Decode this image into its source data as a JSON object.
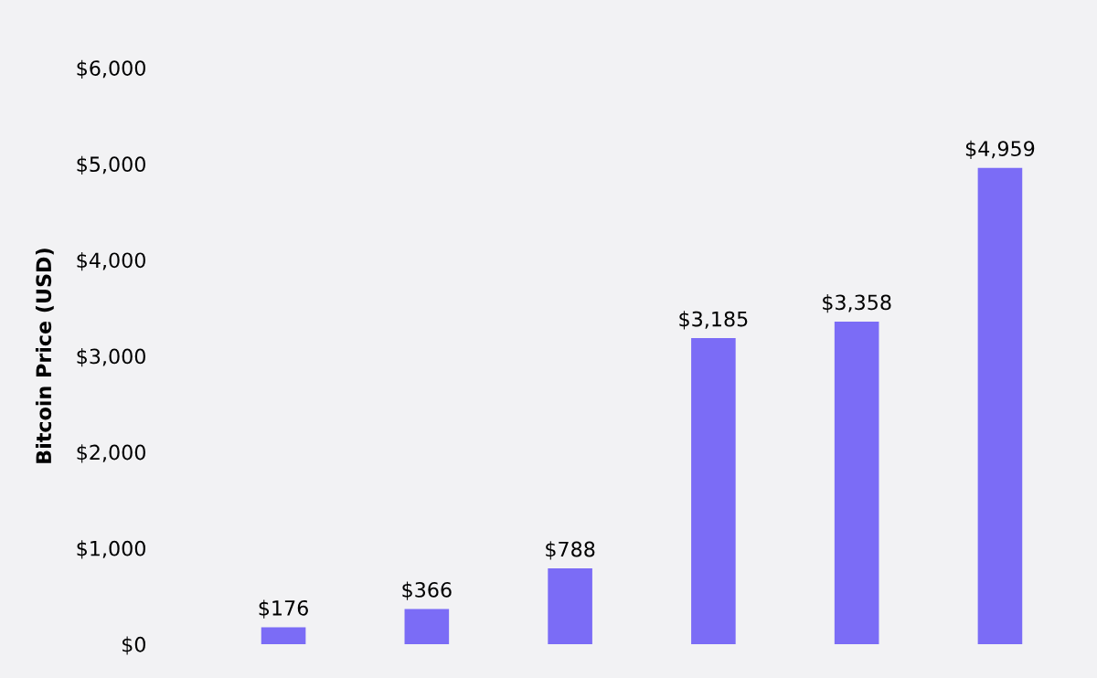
{
  "chart_data": {
    "type": "bar",
    "ylabel": "Bitcoin Price (USD)",
    "categories": [
      null,
      null,
      null,
      null,
      null,
      null
    ],
    "values": [
      176,
      366,
      788,
      3185,
      3358,
      4959
    ],
    "color": "#7b6cf6",
    "value_labels": [
      "$176",
      "$366",
      "$788",
      "$3,185",
      "$3,358",
      "$4,959"
    ],
    "ylim": [
      0,
      6000
    ],
    "yticks": [
      {
        "value": 0,
        "label": "$0"
      },
      {
        "value": 1000,
        "label": "$1,000"
      },
      {
        "value": 2000,
        "label": "$2,000"
      },
      {
        "value": 3000,
        "label": "$3,000"
      },
      {
        "value": 4000,
        "label": "$4,000"
      },
      {
        "value": 5000,
        "label": "$5,000"
      },
      {
        "value": 6000,
        "label": "$6,000"
      }
    ],
    "grid": false,
    "legend": false
  }
}
